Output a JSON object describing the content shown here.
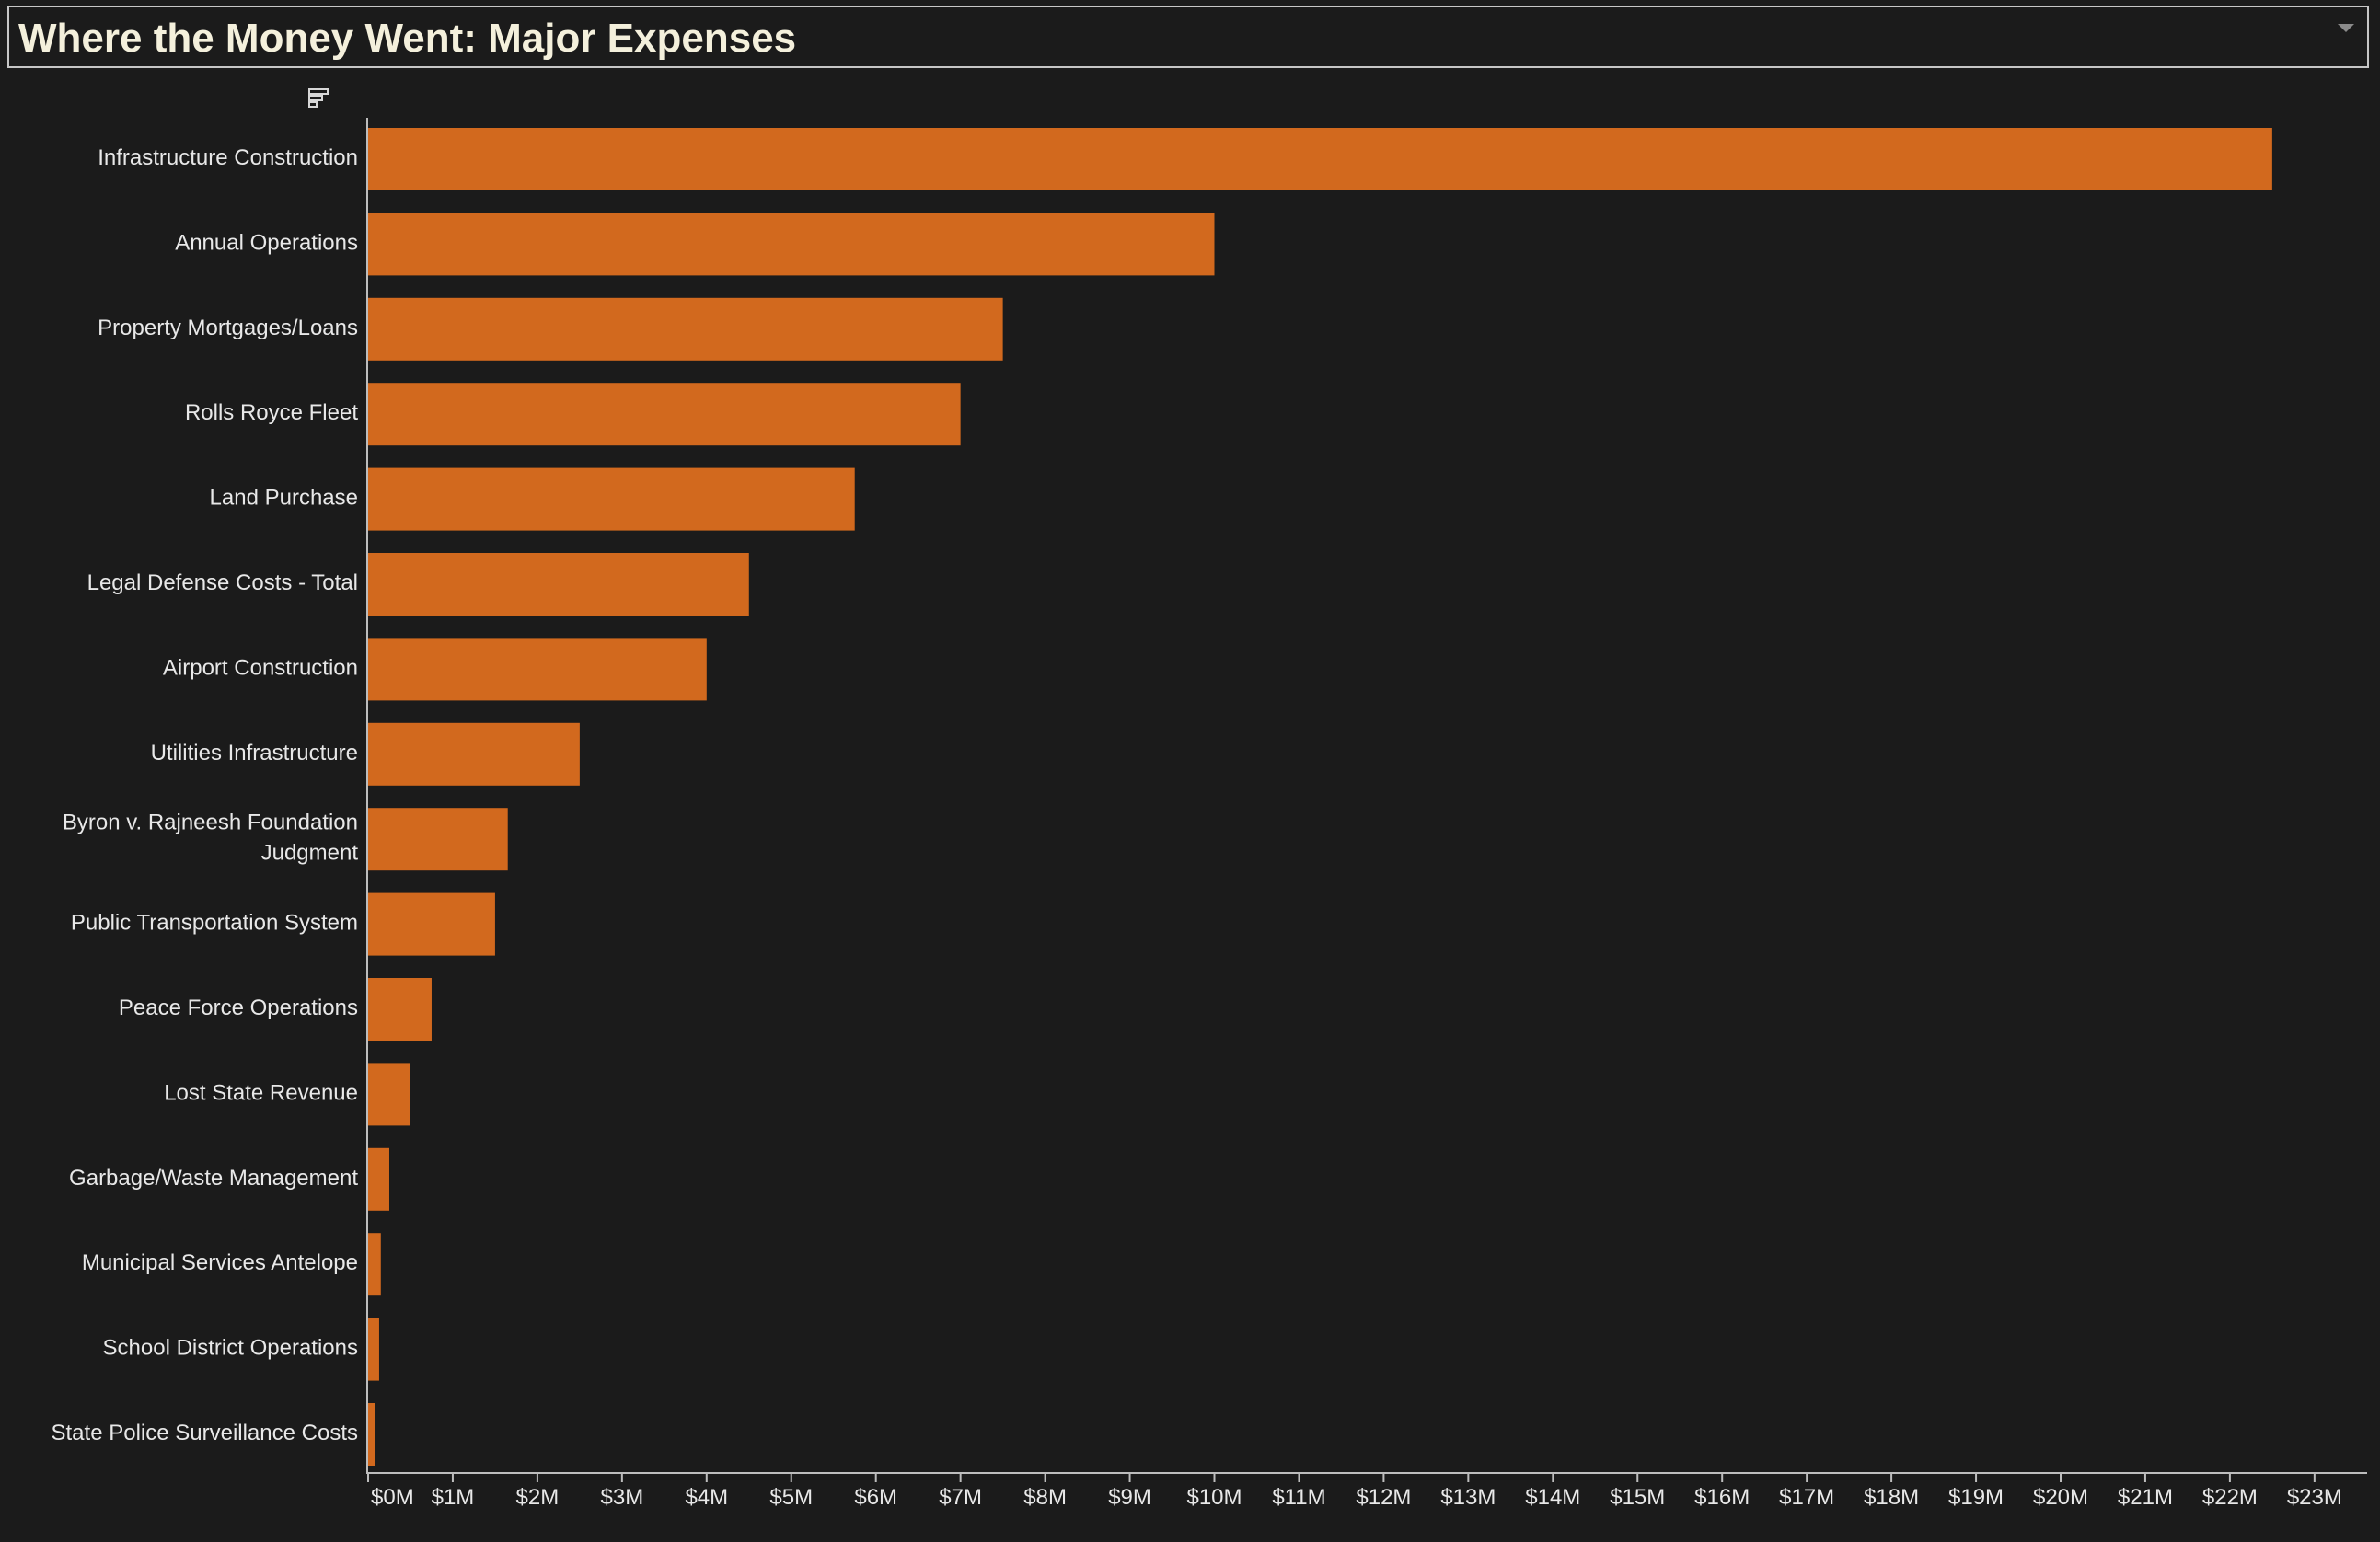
{
  "header": {
    "title": "Where the Money Went: Major Expenses"
  },
  "colors": {
    "background": "#1b1b1b",
    "bar": "#d2691e",
    "text": "#e8e8e8",
    "title": "#f4f0dc",
    "axis": "#bdbdbd"
  },
  "icons": {
    "sort": "sort-icon",
    "dropdown": "chevron-down-icon"
  },
  "chart_data": {
    "type": "bar",
    "orientation": "horizontal",
    "title": "Where the Money Went: Major Expenses",
    "xlabel": "",
    "ylabel": "",
    "xlim": [
      0,
      23.6
    ],
    "grid": false,
    "categories": [
      [
        "Infrastructure Construction"
      ],
      [
        "Annual Operations"
      ],
      [
        "Property Mortgages/Loans"
      ],
      [
        "Rolls Royce Fleet"
      ],
      [
        "Land Purchase"
      ],
      [
        "Legal Defense Costs - Total"
      ],
      [
        "Airport Construction"
      ],
      [
        "Utilities Infrastructure"
      ],
      [
        "Byron v. Rajneesh Foundation",
        "Judgment"
      ],
      [
        "Public Transportation System"
      ],
      [
        "Peace Force Operations"
      ],
      [
        "Lost State Revenue"
      ],
      [
        "Garbage/Waste Management"
      ],
      [
        "Municipal Services Antelope"
      ],
      [
        "School District Operations"
      ],
      [
        "State Police Surveillance Costs"
      ]
    ],
    "values": [
      22.5,
      10.0,
      7.5,
      7.0,
      5.75,
      4.5,
      4.0,
      2.5,
      1.65,
      1.5,
      0.75,
      0.5,
      0.25,
      0.15,
      0.13,
      0.08
    ],
    "units": "$M",
    "ticks": [
      0,
      1,
      2,
      3,
      4,
      5,
      6,
      7,
      8,
      9,
      10,
      11,
      12,
      13,
      14,
      15,
      16,
      17,
      18,
      19,
      20,
      21,
      22,
      23
    ],
    "tick_labels": [
      "$0M",
      "$1M",
      "$2M",
      "$3M",
      "$4M",
      "$5M",
      "$6M",
      "$7M",
      "$8M",
      "$9M",
      "$10M",
      "$11M",
      "$12M",
      "$13M",
      "$14M",
      "$15M",
      "$16M",
      "$17M",
      "$18M",
      "$19M",
      "$20M",
      "$21M",
      "$22M",
      "$23M"
    ]
  }
}
